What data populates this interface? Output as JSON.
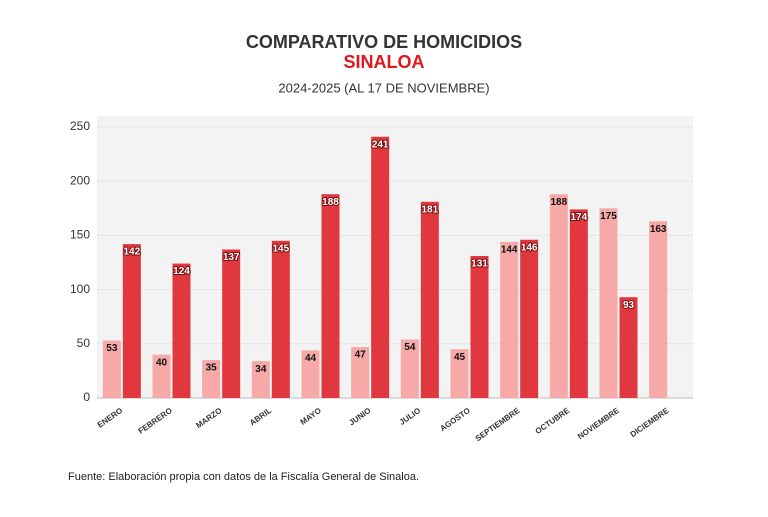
{
  "chart_data": {
    "type": "bar",
    "title": "COMPARATIVO DE HOMICIDIOS",
    "subtitle": "SINALOA",
    "period": "2024-2025 (AL 17 DE NOVIEMBRE)",
    "source": "Fuente: Elaboración propia con datos de la Fiscalía General de Sinaloa.",
    "categories": [
      "ENERO",
      "FEBRERO",
      "MARZO",
      "ABRIL",
      "MAYO",
      "JUNIO",
      "JULIO",
      "AGOSTO",
      "SEPTIEMBRE",
      "OCTUBRE",
      "NOVIEMBRE",
      "DICIEMBRE"
    ],
    "series": [
      {
        "color": "#f7a9a8",
        "values": [
          53,
          40,
          35,
          34,
          44,
          47,
          54,
          45,
          144,
          188,
          175,
          163
        ]
      },
      {
        "color": "#e0383e",
        "values": [
          142,
          124,
          137,
          145,
          188,
          241,
          181,
          131,
          146,
          174,
          93,
          null
        ]
      }
    ],
    "ylim": [
      0,
      250
    ],
    "yticks": [
      0,
      50,
      100,
      150,
      200,
      250
    ],
    "grid": true
  }
}
